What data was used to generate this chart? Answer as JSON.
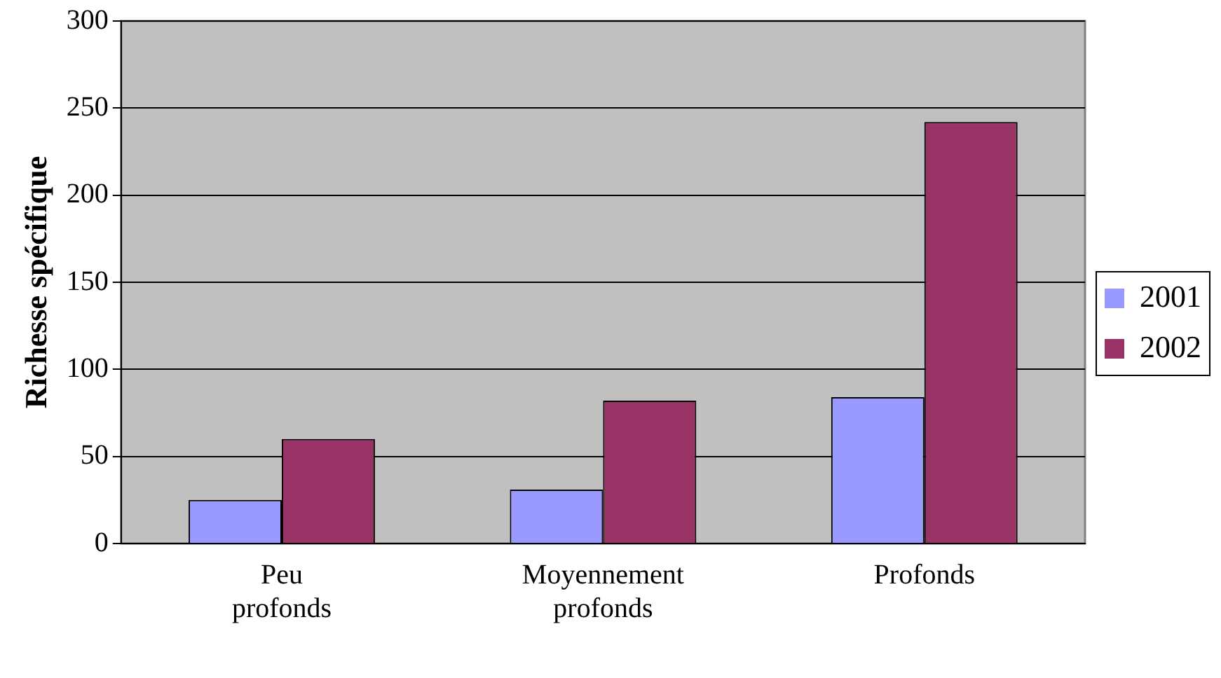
{
  "chart_data": {
    "type": "bar",
    "ylabel": "Richesse spécifique",
    "categories": [
      "Peu profonds",
      "Moyennement profonds",
      "Profonds"
    ],
    "series": [
      {
        "name": "2001",
        "color": "#9999ff",
        "values": [
          25,
          31,
          84
        ]
      },
      {
        "name": "2002",
        "color": "#993366",
        "values": [
          60,
          82,
          242
        ]
      }
    ],
    "ylim": [
      0,
      300
    ],
    "yticks": [
      0,
      50,
      100,
      150,
      200,
      250,
      300
    ],
    "grid": "y",
    "legend": "right"
  }
}
